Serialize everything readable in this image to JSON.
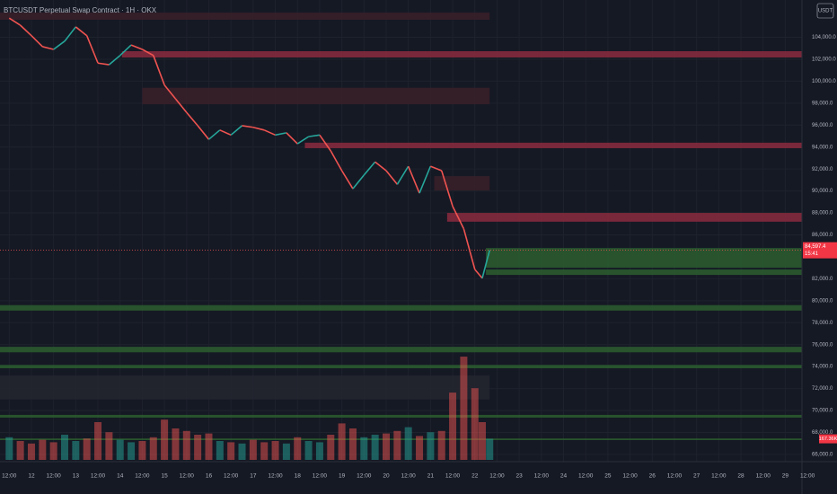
{
  "chart_data": {
    "type": "price",
    "title": "BTCUSDT Perpetual Swap Contract · 1H · OKX",
    "currency": "USDT",
    "x": [
      0,
      6,
      12,
      18,
      24,
      30,
      36,
      42,
      48,
      54,
      60,
      66,
      72,
      78,
      84,
      90,
      96,
      102,
      108,
      114,
      120,
      126,
      132,
      138,
      144,
      150,
      156,
      162,
      168,
      174,
      180,
      186,
      192,
      198,
      204,
      210,
      216,
      222,
      228,
      234,
      240,
      246,
      252,
      256,
      260
    ],
    "series": [
      {
        "values": [
          105750,
          105100,
          104150,
          103150,
          102900,
          103650,
          104950,
          104150,
          101650,
          101500,
          102350,
          103300,
          102900,
          102350,
          99650,
          98400,
          97150,
          95950,
          94700,
          95550,
          95100,
          95950,
          95800,
          95550,
          95100,
          95300,
          94300,
          94950,
          95100,
          93650,
          91850,
          90200,
          91450,
          92650,
          91850,
          90600,
          92250,
          89800,
          92250,
          91850,
          88600,
          86550,
          82850,
          82050,
          84597.4
        ],
        "up_color": "#26a69a",
        "down_color": "#ef5350"
      }
    ],
    "volume": {
      "values": [
        180,
        150,
        130,
        160,
        140,
        200,
        150,
        170,
        300,
        220,
        160,
        140,
        150,
        180,
        320,
        250,
        230,
        200,
        210,
        150,
        140,
        130,
        160,
        140,
        150,
        130,
        180,
        150,
        140,
        200,
        290,
        250,
        180,
        200,
        210,
        230,
        260,
        190,
        220,
        230,
        535,
        821,
        570,
        300,
        167.36
      ],
      "vlim": [
        0,
        1000
      ]
    },
    "last_price": {
      "value": 84597.4,
      "label": "84,597.4"
    },
    "countdown": "15:41",
    "last_volume": {
      "value": 167.36,
      "label": "167.36K"
    },
    "zones": [
      {
        "top": 102736,
        "bottom": 102163,
        "start": 61,
        "color": "#8b2a3e"
      },
      {
        "top": 94400,
        "bottom": 93900,
        "start": 160,
        "color": "#8b2a3e"
      },
      {
        "top": 88000,
        "bottom": 87200,
        "start": 237,
        "color": "#8b2a3e"
      },
      {
        "top": 84800,
        "bottom": 83000,
        "start": 258,
        "color": "#2b5e2f"
      },
      {
        "top": 82850,
        "bottom": 82350,
        "start": 258,
        "color": "#2b5e2f"
      },
      {
        "top": 79600,
        "bottom": 79100,
        "start": -5,
        "color": "#2b5e2f"
      },
      {
        "top": 75800,
        "bottom": 75300,
        "start": -5,
        "color": "#2b5e2f"
      },
      {
        "top": 74150,
        "bottom": 73850,
        "start": -5,
        "color": "#2b5e2f"
      },
      {
        "top": 69600,
        "bottom": 69350,
        "start": -5,
        "color": "#2b5e2f"
      },
      {
        "top": 67450,
        "bottom": 67300,
        "start": -5,
        "color": "#2b5e2f"
      },
      {
        "top": 106250,
        "bottom": 105600,
        "start": -5,
        "end": 260,
        "color": "#3a2029"
      },
      {
        "top": 99400,
        "bottom": 97900,
        "start": 72,
        "end": 260,
        "color": "#3a2029"
      },
      {
        "top": 91350,
        "bottom": 90050,
        "start": 230,
        "end": 260,
        "color": "#3a2029"
      },
      {
        "top": 73200,
        "bottom": 71000,
        "start": -5,
        "end": 260,
        "color": "#23262f"
      }
    ],
    "xlim": [
      -5,
      448
    ],
    "ylim": [
      65500,
      107400
    ],
    "yticks": [
      {
        "value": 104000,
        "label": "104,000.0"
      },
      {
        "value": 102000,
        "label": "102,000.0"
      },
      {
        "value": 100000,
        "label": "100,000.0"
      },
      {
        "value": 98000,
        "label": "98,000.0"
      },
      {
        "value": 96000,
        "label": "96,000.0"
      },
      {
        "value": 94000,
        "label": "94,000.0"
      },
      {
        "value": 92000,
        "label": "92,000.0"
      },
      {
        "value": 90000,
        "label": "90,000.0"
      },
      {
        "value": 88000,
        "label": "88,000.0"
      },
      {
        "value": 86000,
        "label": "86,000.0"
      },
      {
        "value": 82000,
        "label": "82,000.0"
      },
      {
        "value": 80000,
        "label": "80,000.0"
      },
      {
        "value": 78000,
        "label": "78,000.0"
      },
      {
        "value": 76000,
        "label": "76,000.0"
      },
      {
        "value": 74000,
        "label": "74,000.0"
      },
      {
        "value": 72000,
        "label": "72,000.0"
      },
      {
        "value": 70000,
        "label": "70,000.0"
      },
      {
        "value": 68000,
        "label": "68,000.0"
      },
      {
        "value": 66000,
        "label": "66,000.0"
      }
    ],
    "xticks": [
      {
        "value": 0,
        "label": "12:00"
      },
      {
        "value": 12,
        "label": "12"
      },
      {
        "value": 24,
        "label": "12:00"
      },
      {
        "value": 36,
        "label": "13"
      },
      {
        "value": 48,
        "label": "12:00"
      },
      {
        "value": 60,
        "label": "14"
      },
      {
        "value": 72,
        "label": "12:00"
      },
      {
        "value": 84,
        "label": "15"
      },
      {
        "value": 96,
        "label": "12:00"
      },
      {
        "value": 108,
        "label": "16"
      },
      {
        "value": 120,
        "label": "12:00"
      },
      {
        "value": 132,
        "label": "17"
      },
      {
        "value": 144,
        "label": "12:00"
      },
      {
        "value": 156,
        "label": "18"
      },
      {
        "value": 168,
        "label": "12:00"
      },
      {
        "value": 180,
        "label": "19"
      },
      {
        "value": 192,
        "label": "12:00"
      },
      {
        "value": 204,
        "label": "20"
      },
      {
        "value": 216,
        "label": "12:00"
      },
      {
        "value": 228,
        "label": "21"
      },
      {
        "value": 240,
        "label": "12:00"
      },
      {
        "value": 252,
        "label": "22"
      },
      {
        "value": 264,
        "label": "12:00"
      },
      {
        "value": 276,
        "label": "23"
      },
      {
        "value": 288,
        "label": "12:00"
      },
      {
        "value": 300,
        "label": "24"
      },
      {
        "value": 312,
        "label": "12:00"
      },
      {
        "value": 324,
        "label": "25"
      },
      {
        "value": 336,
        "label": "12:00"
      },
      {
        "value": 348,
        "label": "26"
      },
      {
        "value": 360,
        "label": "12:00"
      },
      {
        "value": 372,
        "label": "27"
      },
      {
        "value": 384,
        "label": "12:00"
      },
      {
        "value": 396,
        "label": "28"
      },
      {
        "value": 408,
        "label": "12:00"
      },
      {
        "value": 420,
        "label": "29"
      },
      {
        "value": 432,
        "label": "12:00"
      }
    ],
    "grid": true
  }
}
